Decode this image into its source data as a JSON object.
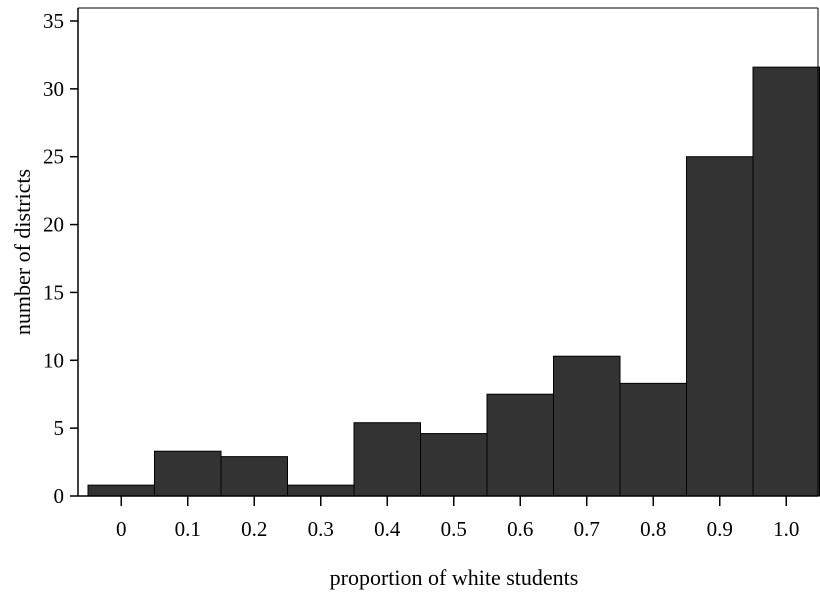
{
  "chart_data": {
    "type": "bar",
    "title": "",
    "xlabel": "proportion of white students",
    "ylabel": "number of districts",
    "categories": [
      "0",
      "0.1",
      "0.2",
      "0.3",
      "0.4",
      "0.5",
      "0.6",
      "0.7",
      "0.8",
      "0.9",
      "1.0"
    ],
    "values": [
      0.8,
      3.3,
      2.9,
      0.8,
      5.4,
      4.6,
      7.5,
      10.3,
      8.3,
      25.0,
      31.6
    ],
    "yticks": [
      "0",
      "5",
      "10",
      "15",
      "20",
      "25",
      "30",
      "35"
    ],
    "ylim": [
      0,
      35
    ],
    "grid": false,
    "legend": "none",
    "colors": {
      "bar_fill": "#333333",
      "bar_stroke": "#000000",
      "axis": "#000000"
    }
  }
}
